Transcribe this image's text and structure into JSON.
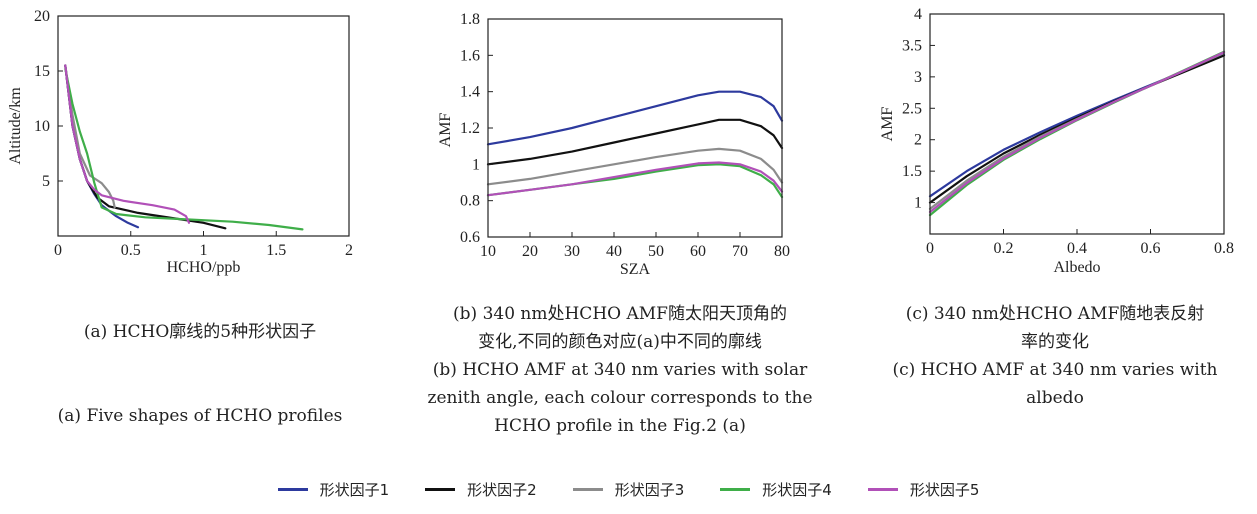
{
  "series_colors": [
    "#2d3a9e",
    "#111111",
    "#8c8c8c",
    "#3fae49",
    "#b150b8"
  ],
  "legend": [
    "形状因子1",
    "形状因子2",
    "形状因子3",
    "形状因子4",
    "形状因子5"
  ],
  "captions": {
    "a": [
      "(a) HCHO廓线的5种形状因子",
      "(a) Five shapes of HCHO profiles"
    ],
    "b": [
      "(b) 340 nm处HCHO AMF随太阳天顶角的",
      "变化,不同的颜色对应(a)中不同的廓线",
      "(b) HCHO AMF at 340 nm varies with solar",
      "zenith angle, each colour corresponds to the",
      "HCHO profile in the Fig.2 (a)"
    ],
    "c": [
      "(c) 340 nm处HCHO AMF随地表反射",
      "率的变化",
      "(c) HCHO AMF at 340 nm varies with",
      "albedo"
    ]
  },
  "chart_data": [
    {
      "type": "line",
      "xlabel": "HCHO/ppb",
      "ylabel": "Altitude/km",
      "xlim": [
        0,
        2
      ],
      "ylim": [
        0,
        20
      ],
      "xticks": [
        0,
        0.5,
        1,
        1.5,
        2
      ],
      "xtick_labels": [
        "0",
        "0.5",
        "1",
        "1.5",
        "2"
      ],
      "yticks": [
        5,
        10,
        15,
        20
      ],
      "ytick_labels": [
        "5",
        "10",
        "15",
        "20"
      ],
      "series": [
        {
          "x": [
            0.05,
            0.1,
            0.15,
            0.2,
            0.25,
            0.3,
            0.4,
            0.48,
            0.55
          ],
          "y": [
            15.5,
            10,
            7,
            5,
            3.8,
            2.8,
            1.8,
            1.2,
            0.8
          ]
        },
        {
          "x": [
            0.05,
            0.1,
            0.15,
            0.2,
            0.27,
            0.35,
            0.55,
            0.8,
            1.0,
            1.15
          ],
          "y": [
            15.5,
            10,
            7,
            5,
            3.5,
            2.7,
            2.1,
            1.6,
            1.2,
            0.7
          ]
        },
        {
          "x": [
            0.05,
            0.1,
            0.15,
            0.22,
            0.3,
            0.35,
            0.38,
            0.39
          ],
          "y": [
            15.5,
            11,
            7.5,
            5.5,
            4.8,
            4.0,
            3.2,
            2.6
          ]
        },
        {
          "x": [
            0.05,
            0.1,
            0.15,
            0.2,
            0.25,
            0.3,
            0.4,
            0.6,
            0.9,
            1.2,
            1.45,
            1.68
          ],
          "y": [
            15.2,
            12,
            9.5,
            7.5,
            4.8,
            2.6,
            2.0,
            1.7,
            1.5,
            1.3,
            1.0,
            0.6
          ]
        },
        {
          "x": [
            0.05,
            0.1,
            0.15,
            0.2,
            0.25,
            0.3,
            0.45,
            0.65,
            0.8,
            0.88,
            0.9
          ],
          "y": [
            15.5,
            10,
            7,
            5,
            4.2,
            3.7,
            3.2,
            2.8,
            2.4,
            1.8,
            1.2
          ]
        }
      ]
    },
    {
      "type": "line",
      "xlabel": "SZA",
      "ylabel": "AMF",
      "xlim": [
        10,
        80
      ],
      "ylim": [
        0.6,
        1.8
      ],
      "xticks": [
        10,
        20,
        30,
        40,
        50,
        60,
        70,
        80
      ],
      "xtick_labels": [
        "10",
        "20",
        "30",
        "40",
        "50",
        "60",
        "70",
        "80"
      ],
      "yticks": [
        0.6,
        0.8,
        1.0,
        1.2,
        1.4,
        1.6,
        1.8
      ],
      "ytick_labels": [
        "0.6",
        "0.8",
        "1",
        "1.2",
        "1.4",
        "1.6",
        "1.8"
      ],
      "series": [
        {
          "x": [
            10,
            20,
            30,
            40,
            50,
            60,
            65,
            70,
            75,
            78,
            80
          ],
          "y": [
            1.11,
            1.15,
            1.2,
            1.26,
            1.32,
            1.38,
            1.4,
            1.4,
            1.37,
            1.32,
            1.24
          ]
        },
        {
          "x": [
            10,
            20,
            30,
            40,
            50,
            60,
            65,
            70,
            75,
            78,
            80
          ],
          "y": [
            1.0,
            1.03,
            1.07,
            1.12,
            1.17,
            1.22,
            1.245,
            1.245,
            1.21,
            1.16,
            1.09
          ]
        },
        {
          "x": [
            10,
            20,
            30,
            40,
            50,
            60,
            65,
            70,
            75,
            78,
            80
          ],
          "y": [
            0.89,
            0.92,
            0.96,
            1.0,
            1.04,
            1.075,
            1.085,
            1.075,
            1.03,
            0.97,
            0.9
          ]
        },
        {
          "x": [
            10,
            20,
            30,
            40,
            50,
            60,
            65,
            70,
            75,
            78,
            80
          ],
          "y": [
            0.83,
            0.86,
            0.89,
            0.92,
            0.96,
            0.995,
            1.0,
            0.99,
            0.94,
            0.89,
            0.82
          ]
        },
        {
          "x": [
            10,
            20,
            30,
            40,
            50,
            60,
            65,
            70,
            75,
            78,
            80
          ],
          "y": [
            0.83,
            0.86,
            0.89,
            0.93,
            0.97,
            1.005,
            1.01,
            1.0,
            0.96,
            0.91,
            0.85
          ]
        }
      ]
    },
    {
      "type": "line",
      "xlabel": "Albedo",
      "ylabel": "AMF",
      "xlim": [
        0,
        0.8
      ],
      "ylim": [
        0.5,
        4
      ],
      "xticks": [
        0,
        0.2,
        0.4,
        0.6,
        0.8
      ],
      "xtick_labels": [
        "0",
        "0.2",
        "0.4",
        "0.6",
        "0.8"
      ],
      "yticks": [
        1,
        1.5,
        2,
        2.5,
        3,
        3.5,
        4
      ],
      "ytick_labels": [
        "1",
        "1.5",
        "2",
        "2.5",
        "3",
        "3.5",
        "4"
      ],
      "series": [
        {
          "x": [
            0,
            0.1,
            0.2,
            0.3,
            0.4,
            0.5,
            0.6,
            0.7,
            0.8
          ],
          "y": [
            1.1,
            1.5,
            1.84,
            2.12,
            2.38,
            2.63,
            2.87,
            3.11,
            3.35
          ]
        },
        {
          "x": [
            0,
            0.1,
            0.2,
            0.3,
            0.4,
            0.5,
            0.6,
            0.7,
            0.8
          ],
          "y": [
            1.0,
            1.42,
            1.78,
            2.08,
            2.35,
            2.61,
            2.86,
            3.1,
            3.34
          ]
        },
        {
          "x": [
            0,
            0.1,
            0.2,
            0.3,
            0.4,
            0.5,
            0.6,
            0.7,
            0.8
          ],
          "y": [
            0.9,
            1.35,
            1.73,
            2.05,
            2.33,
            2.6,
            2.86,
            3.12,
            3.38
          ]
        },
        {
          "x": [
            0,
            0.1,
            0.2,
            0.3,
            0.4,
            0.5,
            0.6,
            0.7,
            0.8
          ],
          "y": [
            0.8,
            1.28,
            1.68,
            2.01,
            2.31,
            2.59,
            2.86,
            3.13,
            3.4
          ]
        },
        {
          "x": [
            0,
            0.1,
            0.2,
            0.3,
            0.4,
            0.5,
            0.6,
            0.7,
            0.8
          ],
          "y": [
            0.85,
            1.31,
            1.7,
            2.03,
            2.32,
            2.6,
            2.86,
            3.12,
            3.39
          ]
        }
      ]
    }
  ]
}
